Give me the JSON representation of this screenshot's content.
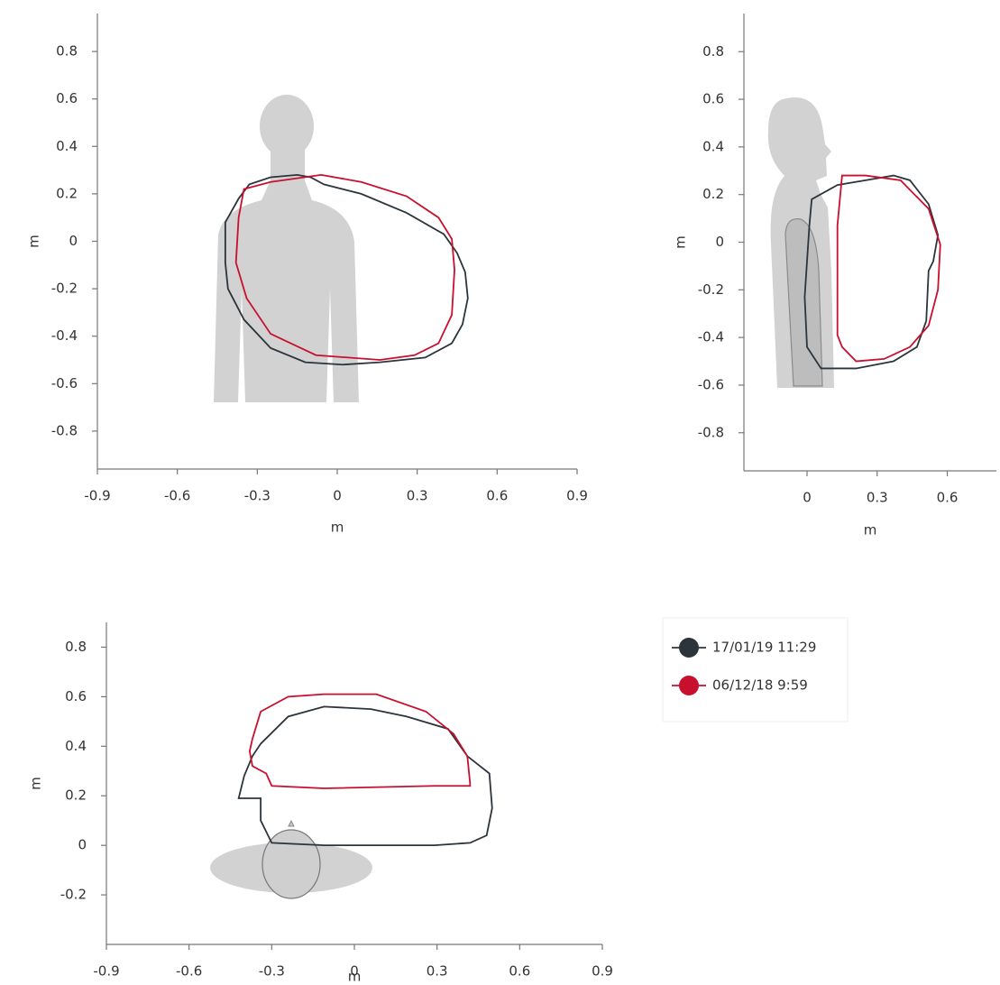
{
  "legend": {
    "entries": [
      {
        "name": "17/01/19 11:29",
        "color": "#2c343c"
      },
      {
        "name": "06/12/18 9:59",
        "color": "#c8102e"
      }
    ]
  },
  "chart_data": [
    {
      "type": "line",
      "x_label": "m",
      "y_label": "m",
      "xlim": [
        -0.9,
        0.9
      ],
      "ylim": [
        -0.96,
        0.96
      ],
      "xticks": [
        -0.9,
        -0.6,
        -0.3,
        0,
        0.3,
        0.6,
        0.9
      ],
      "yticks": [
        -0.8,
        -0.6,
        -0.4,
        -0.2,
        0,
        0.2,
        0.4,
        0.6,
        0.8
      ],
      "series": [
        {
          "color": "#2c343c",
          "x": [
            -0.33,
            -0.25,
            -0.15,
            -0.1,
            -0.05,
            0.09,
            0.26,
            0.4,
            0.45,
            0.48,
            0.49,
            0.47,
            0.43,
            0.33,
            0.16,
            0.02,
            -0.12,
            -0.25,
            -0.35,
            -0.41,
            -0.42,
            -0.42,
            -0.37
          ],
          "y": [
            0.24,
            0.27,
            0.28,
            0.27,
            0.24,
            0.2,
            0.12,
            0.03,
            -0.05,
            -0.13,
            -0.24,
            -0.35,
            -0.43,
            -0.49,
            -0.51,
            -0.52,
            -0.51,
            -0.45,
            -0.33,
            -0.2,
            -0.09,
            0.08,
            0.18
          ]
        },
        {
          "color": "#c8102e",
          "x": [
            -0.35,
            -0.25,
            -0.06,
            0.09,
            0.26,
            0.38,
            0.43,
            0.44,
            0.43,
            0.38,
            0.29,
            0.16,
            -0.08,
            -0.25,
            -0.34,
            -0.38,
            -0.37
          ],
          "y": [
            0.22,
            0.25,
            0.28,
            0.25,
            0.19,
            0.1,
            0.01,
            -0.12,
            -0.31,
            -0.43,
            -0.48,
            -0.5,
            -0.48,
            -0.39,
            -0.24,
            -0.09,
            0.1
          ]
        }
      ]
    },
    {
      "type": "line",
      "x_label": "m",
      "y_label": "m",
      "xlim": [
        -0.27,
        0.81
      ],
      "ylim": [
        -0.96,
        0.96
      ],
      "xticks": [
        0,
        0.3,
        0.6
      ],
      "yticks": [
        -0.8,
        -0.6,
        -0.4,
        -0.2,
        0,
        0.2,
        0.4,
        0.6,
        0.8
      ],
      "series": [
        {
          "color": "#2c343c",
          "x": [
            0.02,
            0.13,
            0.25,
            0.37,
            0.44,
            0.52,
            0.56,
            0.54,
            0.52,
            0.51,
            0.47,
            0.37,
            0.21,
            0.06,
            0,
            -0.01,
            0.01
          ],
          "y": [
            0.18,
            0.24,
            0.26,
            0.28,
            0.26,
            0.16,
            0.03,
            -0.08,
            -0.12,
            -0.33,
            -0.44,
            -0.5,
            -0.53,
            -0.53,
            -0.44,
            -0.23,
            0.07
          ]
        },
        {
          "color": "#c8102e",
          "x": [
            0.15,
            0.25,
            0.4,
            0.52,
            0.57,
            0.56,
            0.52,
            0.44,
            0.33,
            0.21,
            0.15,
            0.13,
            0.13
          ],
          "y": [
            0.28,
            0.28,
            0.26,
            0.14,
            -0.01,
            -0.2,
            -0.35,
            -0.44,
            -0.49,
            -0.5,
            -0.44,
            -0.39,
            0.07
          ]
        }
      ]
    },
    {
      "type": "line",
      "x_label": "m",
      "y_label": "m",
      "xlim": [
        -0.9,
        0.9
      ],
      "ylim": [
        -0.4,
        0.9
      ],
      "xticks": [
        -0.9,
        -0.6,
        -0.3,
        0,
        0.3,
        0.6,
        0.9
      ],
      "yticks": [
        -0.2,
        0,
        0.2,
        0.4,
        0.6,
        0.8
      ],
      "series": [
        {
          "color": "#2c343c",
          "x": [
            -0.34,
            -0.24,
            -0.11,
            0.06,
            0.19,
            0.34,
            0.41,
            0.49,
            0.5,
            0.48,
            0.42,
            0.29,
            -0.11,
            -0.3,
            -0.34,
            -0.34,
            -0.42,
            -0.4,
            -0.37
          ],
          "y": [
            0.41,
            0.52,
            0.56,
            0.55,
            0.52,
            0.47,
            0.36,
            0.29,
            0.15,
            0.04,
            0.01,
            0,
            0,
            0.01,
            0.1,
            0.19,
            0.19,
            0.28,
            0.36
          ]
        },
        {
          "color": "#c8102e",
          "x": [
            -0.34,
            -0.24,
            -0.11,
            0.08,
            0.26,
            0.36,
            0.41,
            0.42,
            0.42,
            0.29,
            -0.11,
            -0.3,
            -0.32,
            -0.37,
            -0.38,
            -0.37
          ],
          "y": [
            0.54,
            0.6,
            0.61,
            0.61,
            0.54,
            0.45,
            0.36,
            0.25,
            0.24,
            0.24,
            0.23,
            0.24,
            0.29,
            0.32,
            0.38,
            0.43
          ]
        }
      ]
    }
  ]
}
